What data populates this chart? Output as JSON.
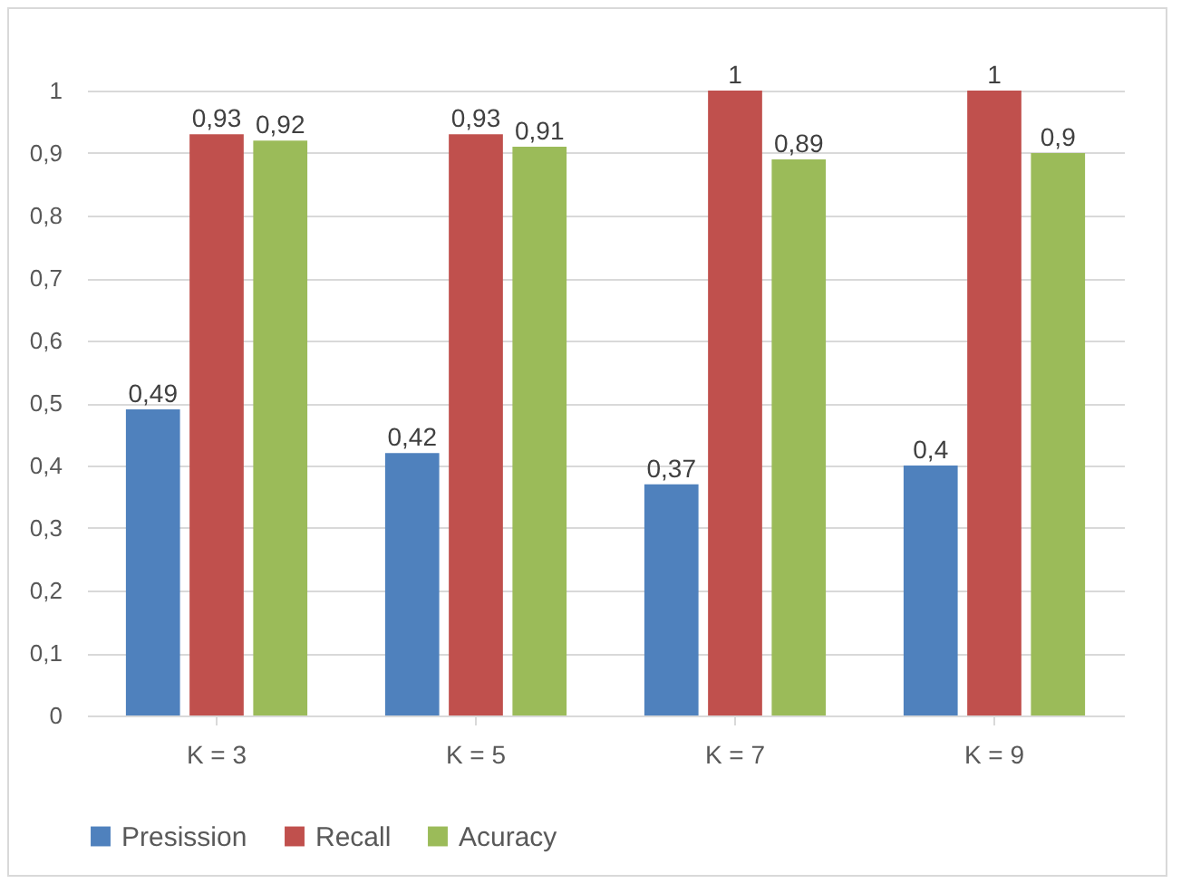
{
  "chart_data": {
    "type": "bar",
    "categories": [
      "K = 3",
      "K = 5",
      "K = 7",
      "K = 9"
    ],
    "series": [
      {
        "name": "Presission",
        "color": "#4f81bd",
        "values": [
          0.49,
          0.42,
          0.37,
          0.4
        ],
        "value_labels": [
          "0,49",
          "0,42",
          "0,37",
          "0,4"
        ]
      },
      {
        "name": "Recall",
        "color": "#c0504d",
        "values": [
          0.93,
          0.93,
          1,
          1
        ],
        "value_labels": [
          "0,93",
          "0,93",
          "1",
          "1"
        ]
      },
      {
        "name": "Acuracy",
        "color": "#9bbb59",
        "values": [
          0.92,
          0.91,
          0.89,
          0.9
        ],
        "value_labels": [
          "0,92",
          "0,91",
          "0,89",
          "0,9"
        ]
      }
    ],
    "ylim": [
      0,
      1
    ],
    "yticks": [
      0,
      {
        "value": 0.1,
        "label": "0,1"
      },
      {
        "value": 0.2,
        "label": "0,2"
      },
      {
        "value": 0.3,
        "label": "0,3"
      },
      {
        "value": 0.4,
        "label": "0,4"
      },
      {
        "value": 0.5,
        "label": "0,5"
      },
      {
        "value": 0.6,
        "label": "0,6"
      },
      {
        "value": 0.7,
        "label": "0,7"
      },
      {
        "value": 0.8,
        "label": "0,8"
      },
      {
        "value": 0.9,
        "label": "0,9"
      },
      1
    ],
    "grid": "y",
    "legend": "bottom"
  }
}
